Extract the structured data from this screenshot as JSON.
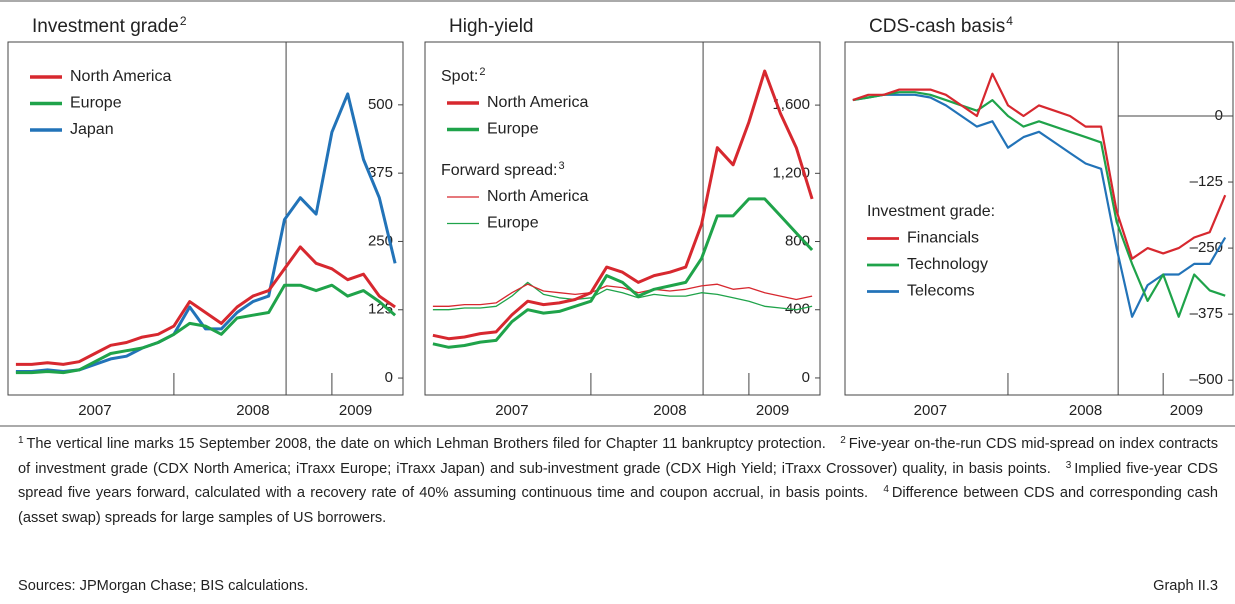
{
  "chart_data": [
    {
      "type": "line",
      "title": "Investment grade",
      "title_note": "2",
      "legend": "upper left",
      "xlim": [
        2006.95,
        2009.45
      ],
      "xticks": [
        {
          "value": 2007.5,
          "label": "2007"
        },
        {
          "value": 2008.5,
          "label": "2008"
        },
        {
          "value": 2009.15,
          "label": "2009"
        }
      ],
      "xticks_major": [
        2008,
        2009
      ],
      "vline_x": 2008.71,
      "ylim": [
        -31,
        615
      ],
      "yticks": [
        0,
        125,
        250,
        375,
        500
      ],
      "x": [
        2007.0,
        2007.1,
        2007.2,
        2007.3,
        2007.4,
        2007.5,
        2007.6,
        2007.7,
        2007.8,
        2007.9,
        2008.0,
        2008.1,
        2008.2,
        2008.3,
        2008.4,
        2008.5,
        2008.6,
        2008.7,
        2008.8,
        2008.9,
        2009.0,
        2009.1,
        2009.2,
        2009.3,
        2009.4
      ],
      "series": [
        {
          "name": "North America",
          "color": "#d7282f",
          "line_width": 3,
          "values": [
            25,
            25,
            28,
            25,
            30,
            45,
            60,
            65,
            75,
            80,
            95,
            140,
            120,
            100,
            130,
            150,
            160,
            200,
            240,
            210,
            200,
            180,
            190,
            150,
            130
          ]
        },
        {
          "name": "Europe",
          "color": "#1fa34a",
          "line_width": 3,
          "values": [
            10,
            10,
            12,
            10,
            15,
            30,
            45,
            50,
            55,
            65,
            80,
            100,
            95,
            80,
            110,
            115,
            120,
            170,
            170,
            160,
            170,
            150,
            160,
            140,
            115
          ]
        },
        {
          "name": "Japan",
          "color": "#2273b8",
          "line_width": 3,
          "values": [
            12,
            12,
            15,
            12,
            15,
            25,
            35,
            40,
            55,
            65,
            80,
            130,
            90,
            90,
            120,
            140,
            150,
            290,
            330,
            300,
            450,
            520,
            400,
            330,
            210
          ]
        }
      ]
    },
    {
      "type": "line",
      "title": "High-yield",
      "legend": "upper left",
      "xlim": [
        2006.95,
        2009.45
      ],
      "xticks": [
        {
          "value": 2007.5,
          "label": "2007"
        },
        {
          "value": 2008.5,
          "label": "2008"
        },
        {
          "value": 2009.15,
          "label": "2009"
        }
      ],
      "xticks_major": [
        2008,
        2009
      ],
      "vline_x": 2008.71,
      "ylim": [
        -100,
        1970
      ],
      "yticks": [
        0,
        400,
        800,
        {
          "value": 1200,
          "label": "1,200"
        },
        {
          "value": 1600,
          "label": "1,600"
        }
      ],
      "x": [
        2007.0,
        2007.1,
        2007.2,
        2007.3,
        2007.4,
        2007.5,
        2007.6,
        2007.7,
        2007.8,
        2007.9,
        2008.0,
        2008.1,
        2008.2,
        2008.3,
        2008.4,
        2008.5,
        2008.6,
        2008.7,
        2008.8,
        2008.9,
        2009.0,
        2009.1,
        2009.2,
        2009.3,
        2009.4
      ],
      "series_groups": [
        {
          "title": "Spot:",
          "note": "2",
          "series": [
            {
              "name": "North America",
              "color": "#d7282f",
              "line_width": 3,
              "values": [
                250,
                230,
                240,
                260,
                270,
                370,
                450,
                430,
                440,
                460,
                500,
                650,
                620,
                560,
                600,
                620,
                650,
                900,
                1350,
                1250,
                1500,
                1800,
                1550,
                1350,
                1050
              ]
            },
            {
              "name": "Europe",
              "color": "#1fa34a",
              "line_width": 3,
              "values": [
                200,
                180,
                190,
                210,
                220,
                330,
                400,
                380,
                390,
                420,
                450,
                600,
                560,
                480,
                520,
                540,
                560,
                700,
                950,
                950,
                1050,
                1050,
                950,
                850,
                750
              ]
            }
          ]
        },
        {
          "title": "Forward spread:",
          "note": "3",
          "series": [
            {
              "name": "North America",
              "color": "#d7282f",
              "line_width": 1.3,
              "values": [
                420,
                420,
                430,
                430,
                440,
                500,
                550,
                510,
                500,
                490,
                500,
                540,
                530,
                500,
                520,
                510,
                520,
                540,
                550,
                520,
                530,
                500,
                480,
                460,
                480
              ]
            },
            {
              "name": "Europe",
              "color": "#1fa34a",
              "line_width": 1.3,
              "values": [
                400,
                400,
                410,
                410,
                420,
                480,
                560,
                490,
                470,
                460,
                470,
                520,
                500,
                470,
                490,
                480,
                480,
                500,
                490,
                470,
                450,
                420,
                410,
                400,
                420
              ]
            }
          ]
        }
      ]
    },
    {
      "type": "line",
      "title": "CDS-cash basis",
      "title_note": "4",
      "legend": "lower left",
      "legend_title": "Investment grade:",
      "xlim": [
        2006.95,
        2009.45
      ],
      "xticks": [
        {
          "value": 2007.5,
          "label": "2007"
        },
        {
          "value": 2008.5,
          "label": "2008"
        },
        {
          "value": 2009.15,
          "label": "2009"
        }
      ],
      "xticks_major": [
        2008,
        2009
      ],
      "vline_x": 2008.71,
      "ylim": [
        -528,
        140
      ],
      "yticks": [
        0,
        {
          "value": -125,
          "label": "–125"
        },
        {
          "value": -250,
          "label": "–250"
        },
        {
          "value": -375,
          "label": "–375"
        },
        {
          "value": -500,
          "label": "–500"
        }
      ],
      "x": [
        2007.0,
        2007.1,
        2007.2,
        2007.3,
        2007.4,
        2007.5,
        2007.6,
        2007.7,
        2007.8,
        2007.9,
        2008.0,
        2008.1,
        2008.2,
        2008.3,
        2008.4,
        2008.5,
        2008.6,
        2008.7,
        2008.8,
        2008.9,
        2009.0,
        2009.1,
        2009.2,
        2009.3,
        2009.4
      ],
      "series": [
        {
          "name": "Financials",
          "color": "#d7282f",
          "line_width": 2.2,
          "values": [
            30,
            40,
            40,
            50,
            50,
            50,
            40,
            20,
            0,
            80,
            20,
            0,
            20,
            10,
            0,
            -20,
            -20,
            -180,
            -270,
            -250,
            -260,
            -250,
            -230,
            -220,
            -150
          ]
        },
        {
          "name": "Technology",
          "color": "#1fa34a",
          "line_width": 2.2,
          "values": [
            30,
            35,
            40,
            45,
            45,
            40,
            30,
            20,
            10,
            30,
            0,
            -20,
            -10,
            -20,
            -30,
            -40,
            -50,
            -200,
            -280,
            -350,
            -300,
            -380,
            -300,
            -330,
            -340
          ]
        },
        {
          "name": "Telecoms",
          "color": "#2273b8",
          "line_width": 2.2,
          "values": [
            30,
            35,
            40,
            40,
            40,
            35,
            20,
            0,
            -20,
            -10,
            -60,
            -40,
            -30,
            -50,
            -70,
            -90,
            -100,
            -250,
            -380,
            -320,
            -300,
            -300,
            -280,
            -280,
            -230
          ]
        }
      ]
    }
  ],
  "notes": [
    {
      "mark": "1",
      "text": "The vertical line marks 15 September 2008, the date on which Lehman Brothers filed for Chapter 11 bankruptcy protection."
    },
    {
      "mark": "2",
      "text": "Five-year on-the-run CDS mid-spread on index contracts of investment grade (CDX North America; iTraxx Europe; iTraxx Japan) and sub-investment grade (CDX High Yield; iTraxx Crossover) quality, in basis points."
    },
    {
      "mark": "3",
      "text": "Implied five-year CDS spread five years forward, calculated with a recovery rate of 40% assuming continuous time and coupon accrual, in basis points."
    },
    {
      "mark": "4",
      "text": "Difference between CDS and corresponding cash (asset swap) spreads for large samples of US borrowers."
    }
  ],
  "sources": "Sources: JPMorgan Chase; BIS calculations.",
  "graph_label": "Graph II.3"
}
